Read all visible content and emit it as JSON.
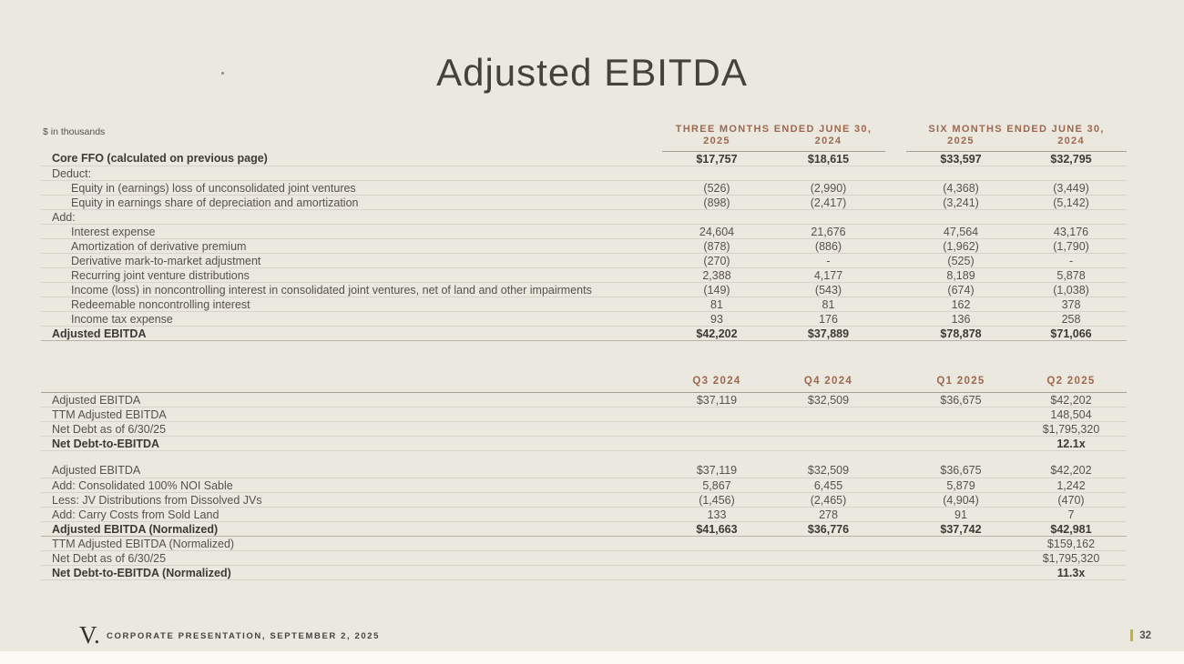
{
  "slide": {
    "title": "Adjusted EBITDA",
    "units_note": "$ in thousands",
    "footer": {
      "logo": "V.",
      "text": "CORPORATE PRESENTATION, SEPTEMBER 2, 2025",
      "page_number": "32"
    },
    "colors": {
      "background": "#ebe8df",
      "header_accent": "#9d6850",
      "body_text": "#56524c",
      "bold_text": "#3d3a35",
      "row_line": "#d8d4c8",
      "strong_rule": "#a6a094",
      "page_bar": "#c2b23b"
    }
  },
  "table1": {
    "col_groups": [
      {
        "label": "THREE MONTHS ENDED JUNE 30,",
        "years": [
          "2025",
          "2024"
        ]
      },
      {
        "label": "SIX MONTHS ENDED JUNE 30,",
        "years": [
          "2025",
          "2024"
        ]
      }
    ],
    "rows": [
      {
        "label": "Core FFO (calculated on previous page)",
        "indent": 0,
        "bold": true,
        "total": false,
        "values": [
          "$17,757",
          "$18,615",
          "$33,597",
          "$32,795"
        ]
      },
      {
        "label": "Deduct:",
        "indent": 0,
        "bold": false,
        "total": false,
        "values": [
          "",
          "",
          "",
          ""
        ]
      },
      {
        "label": "Equity in (earnings) loss of unconsolidated joint ventures",
        "indent": 1,
        "bold": false,
        "total": false,
        "values": [
          "(526)",
          "(2,990)",
          "(4,368)",
          "(3,449)"
        ]
      },
      {
        "label": "Equity in earnings share of depreciation and amortization",
        "indent": 1,
        "bold": false,
        "total": false,
        "values": [
          "(898)",
          "(2,417)",
          "(3,241)",
          "(5,142)"
        ]
      },
      {
        "label": "Add:",
        "indent": 0,
        "bold": false,
        "total": false,
        "values": [
          "",
          "",
          "",
          ""
        ]
      },
      {
        "label": "Interest expense",
        "indent": 1,
        "bold": false,
        "total": false,
        "values": [
          "24,604",
          "21,676",
          "47,564",
          "43,176"
        ]
      },
      {
        "label": "Amortization of derivative premium",
        "indent": 1,
        "bold": false,
        "total": false,
        "values": [
          "(878)",
          "(886)",
          "(1,962)",
          "(1,790)"
        ]
      },
      {
        "label": "Derivative mark-to-market adjustment",
        "indent": 1,
        "bold": false,
        "total": false,
        "values": [
          "(270)",
          "-",
          "(525)",
          "-"
        ]
      },
      {
        "label": "Recurring joint venture distributions",
        "indent": 1,
        "bold": false,
        "total": false,
        "values": [
          "2,388",
          "4,177",
          "8,189",
          "5,878"
        ]
      },
      {
        "label": "Income (loss) in noncontrolling interest in consolidated joint ventures, net of land and other impairments",
        "indent": 1,
        "bold": false,
        "total": false,
        "values": [
          "(149)",
          "(543)",
          "(674)",
          "(1,038)"
        ]
      },
      {
        "label": "Redeemable noncontrolling interest",
        "indent": 1,
        "bold": false,
        "total": false,
        "values": [
          "81",
          "81",
          "162",
          "378"
        ]
      },
      {
        "label": "Income tax expense",
        "indent": 1,
        "bold": false,
        "total": false,
        "values": [
          "93",
          "176",
          "136",
          "258"
        ]
      },
      {
        "label": "Adjusted EBITDA",
        "indent": 0,
        "bold": true,
        "total": true,
        "values": [
          "$42,202",
          "$37,889",
          "$78,878",
          "$71,066"
        ]
      }
    ]
  },
  "table2": {
    "headers": [
      "Q3 2024",
      "Q4 2024",
      "Q1 2025",
      "Q2 2025"
    ],
    "rows": [
      {
        "label": "Adjusted EBITDA",
        "indent": 0,
        "bold": false,
        "total": false,
        "values": [
          "$37,119",
          "$32,509",
          "$36,675",
          "$42,202"
        ]
      },
      {
        "label": "TTM Adjusted EBITDA",
        "indent": 0,
        "bold": false,
        "total": false,
        "values": [
          "",
          "",
          "",
          "148,504"
        ]
      },
      {
        "label": "Net Debt as of 6/30/25",
        "indent": 0,
        "bold": false,
        "total": false,
        "values": [
          "",
          "",
          "",
          "$1,795,320"
        ]
      },
      {
        "label": "Net Debt-to-EBITDA",
        "indent": 0,
        "bold": true,
        "total": false,
        "values": [
          "",
          "",
          "",
          "12.1x"
        ]
      },
      {
        "spacer": true
      },
      {
        "label": "Adjusted EBITDA",
        "indent": 0,
        "bold": false,
        "total": false,
        "values": [
          "$37,119",
          "$32,509",
          "$36,675",
          "$42,202"
        ]
      },
      {
        "label": "Add: Consolidated 100% NOI Sable",
        "indent": 0,
        "bold": false,
        "total": false,
        "values": [
          "5,867",
          "6,455",
          "5,879",
          "1,242"
        ]
      },
      {
        "label": "Less: JV Distributions from Dissolved JVs",
        "indent": 0,
        "bold": false,
        "total": false,
        "values": [
          "(1,456)",
          "(2,465)",
          "(4,904)",
          "(470)"
        ]
      },
      {
        "label": "Add: Carry Costs from Sold Land",
        "indent": 0,
        "bold": false,
        "total": false,
        "values": [
          "133",
          "278",
          "91",
          "7"
        ]
      },
      {
        "label": "Adjusted EBITDA (Normalized)",
        "indent": 0,
        "bold": true,
        "total": true,
        "values": [
          "$41,663",
          "$36,776",
          "$37,742",
          "$42,981"
        ]
      },
      {
        "label": "TTM Adjusted EBITDA (Normalized)",
        "indent": 0,
        "bold": false,
        "total": false,
        "values": [
          "",
          "",
          "",
          "$159,162"
        ]
      },
      {
        "label": "Net Debt as of 6/30/25",
        "indent": 0,
        "bold": false,
        "total": false,
        "values": [
          "",
          "",
          "",
          "$1,795,320"
        ]
      },
      {
        "label": "Net Debt-to-EBITDA (Normalized)",
        "indent": 0,
        "bold": true,
        "total": false,
        "values": [
          "",
          "",
          "",
          "11.3x"
        ]
      }
    ]
  }
}
